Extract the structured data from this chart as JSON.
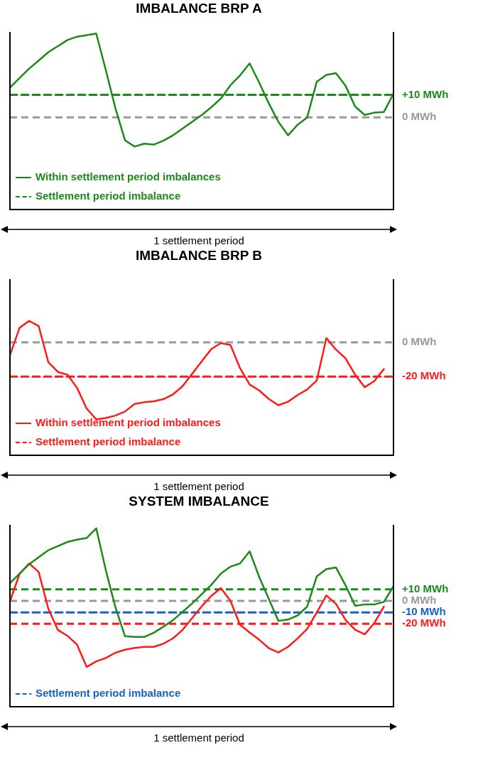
{
  "chart_data": [
    {
      "type": "line",
      "title": "IMBALANCE BRP A",
      "xlabel": "1 settlement period",
      "ylim": [
        -41,
        38
      ],
      "yticks": [
        {
          "value": 10,
          "label": "+10 MWh"
        },
        {
          "value": 0,
          "label": "0 MWh"
        }
      ],
      "tick_labels": "y",
      "legend": "bottom left",
      "marker": "none",
      "categories": [
        null,
        null,
        null,
        null,
        null,
        null,
        null,
        null,
        null,
        null,
        null,
        null,
        null,
        null,
        null,
        null,
        null,
        null,
        null,
        null,
        null,
        null,
        null,
        null,
        null,
        null,
        null,
        null,
        null,
        null,
        null,
        null,
        null,
        null,
        null,
        null,
        null,
        null,
        null,
        null,
        null
      ],
      "series": [
        {
          "name": "Within settlement period imbalances",
          "color": "#1a8a1a",
          "line_style": "solid",
          "values": [
            13.2,
            17.5,
            21.7,
            25.3,
            29,
            31.7,
            34.4,
            35.9,
            36.6,
            37.3,
            21,
            4.1,
            -10.2,
            -13,
            -11.7,
            -12.1,
            -10.4,
            -8,
            -5,
            -2,
            1,
            4.5,
            8.4,
            14.3,
            18.7,
            24,
            15.4,
            6.2,
            -2,
            -8,
            -3.3,
            0,
            15.9,
            18.9,
            19.7,
            14.1,
            4.8,
            1.1,
            2.1,
            2.4,
            10.5
          ]
        },
        {
          "name": "Settlement period imbalance",
          "color": "#1a8a1a",
          "line_style": "dashed",
          "values": [
            10,
            10,
            10,
            10,
            10,
            10,
            10,
            10,
            10,
            10,
            10,
            10,
            10,
            10,
            10,
            10,
            10,
            10,
            10,
            10,
            10,
            10,
            10,
            10,
            10,
            10,
            10,
            10,
            10,
            10,
            10,
            10,
            10,
            10,
            10,
            10,
            10,
            10,
            10,
            10,
            10
          ]
        }
      ],
      "ref_lines": [
        {
          "axis": "y",
          "value": 0,
          "color": "#999999",
          "line_style": "dashed"
        }
      ]
    },
    {
      "type": "line",
      "title": "IMBALANCE BRP B",
      "xlabel": "1 settlement period",
      "ylim": [
        -66,
        37
      ],
      "yticks": [
        {
          "value": 0,
          "label": "0 MWh"
        },
        {
          "value": -20,
          "label": "-20 MWh"
        }
      ],
      "tick_labels": "y",
      "legend": "bottom left",
      "marker": "none",
      "categories": [
        null,
        null,
        null,
        null,
        null,
        null,
        null,
        null,
        null,
        null,
        null,
        null,
        null,
        null,
        null,
        null,
        null,
        null,
        null,
        null,
        null,
        null,
        null,
        null,
        null,
        null,
        null,
        null,
        null,
        null,
        null,
        null,
        null,
        null,
        null,
        null,
        null,
        null,
        null,
        null,
        null
      ],
      "series": [
        {
          "name": "Within settlement period imbalances",
          "color": "#ff1a1a",
          "line_style": "solid",
          "values": [
            -7.5,
            8.5,
            12.6,
            9.5,
            -11.5,
            -17.3,
            -18.9,
            -26.6,
            -38.7,
            -45,
            -44.2,
            -42.8,
            -40.4,
            -36,
            -35,
            -34.4,
            -33.2,
            -30.4,
            -25.6,
            -18.4,
            -11.1,
            -3.9,
            -0.4,
            -1.5,
            -15.1,
            -24.6,
            -28.1,
            -33.1,
            -36.7,
            -34.7,
            -30.8,
            -27.5,
            -22.2,
            2.5,
            -4.2,
            -9.3,
            -18.9,
            -26.2,
            -22.6,
            -15.6,
            null
          ]
        },
        {
          "name": "Settlement period imbalance",
          "color": "#ff1a1a",
          "line_style": "dashed",
          "values": [
            -20,
            -20,
            -20,
            -20,
            -20,
            -20,
            -20,
            -20,
            -20,
            -20,
            -20,
            -20,
            -20,
            -20,
            -20,
            -20,
            -20,
            -20,
            -20,
            -20,
            -20,
            -20,
            -20,
            -20,
            -20,
            -20,
            -20,
            -20,
            -20,
            -20,
            -20,
            -20,
            -20,
            -20,
            -20,
            -20,
            -20,
            -20,
            -20,
            -20,
            -20
          ]
        }
      ],
      "ref_lines": [
        {
          "axis": "y",
          "value": 0,
          "color": "#999999",
          "line_style": "dashed"
        }
      ]
    },
    {
      "type": "line",
      "title": "SYSTEM IMBALANCE",
      "xlabel": "1 settlement period",
      "ylim": [
        -92,
        66
      ],
      "yticks": [
        {
          "value": 10,
          "label": "+10 MWh"
        },
        {
          "value": 0,
          "label": "0 MWh"
        },
        {
          "value": -10,
          "label": "-10 MWh"
        },
        {
          "value": -20,
          "label": "-20 MWh"
        }
      ],
      "tick_labels": "y",
      "legend": "bottom left",
      "marker": "none",
      "categories": [
        null,
        null,
        null,
        null,
        null,
        null,
        null,
        null,
        null,
        null,
        null,
        null,
        null,
        null,
        null,
        null,
        null,
        null,
        null,
        null,
        null,
        null,
        null,
        null,
        null,
        null,
        null,
        null,
        null,
        null,
        null,
        null,
        null,
        null,
        null,
        null,
        null,
        null,
        null,
        null,
        null
      ],
      "series": [
        {
          "color": "#1a8a1a",
          "line_style": "solid",
          "values": [
            15.3,
            23.7,
            31.8,
            37.9,
            44,
            47.6,
            51.2,
            53.2,
            54.6,
            63,
            26.6,
            -5.6,
            -30.8,
            -31.4,
            -31.4,
            -27.7,
            -22.5,
            -16.8,
            -9.6,
            -2.3,
            5.7,
            13.9,
            23.7,
            29.7,
            32.5,
            43,
            20.6,
            1.7,
            -17.4,
            -16.3,
            -12.7,
            -5,
            21.3,
            27.6,
            29,
            13.5,
            -4.3,
            -3.2,
            -3.2,
            -0.9,
            12.6
          ]
        },
        {
          "color": "#ff1a1a",
          "line_style": "solid",
          "values": [
            -0.5,
            23.4,
            32.5,
            25,
            -6.8,
            -25.3,
            -30.4,
            -38.1,
            -57.5,
            -52.6,
            -49.7,
            -45.1,
            -42.5,
            -40.9,
            -40,
            -40,
            -37.3,
            -32.6,
            -25.4,
            -15,
            -4.8,
            4.3,
            11.1,
            0,
            -20.9,
            -27.5,
            -33.9,
            -41.1,
            -44.9,
            -40,
            -32.7,
            -24.4,
            -10.2,
            4.7,
            -2.6,
            -16.6,
            -25.1,
            -29.1,
            -19.3,
            -5,
            null
          ]
        },
        {
          "name": "Settlement period imbalance",
          "color": "#1a5fc8",
          "line_style": "dashed",
          "values": [
            -10,
            -10,
            -10,
            -10,
            -10,
            -10,
            -10,
            -10,
            -10,
            -10,
            -10,
            -10,
            -10,
            -10,
            -10,
            -10,
            -10,
            -10,
            -10,
            -10,
            -10,
            -10,
            -10,
            -10,
            -10,
            -10,
            -10,
            -10,
            -10,
            -10,
            -10,
            -10,
            -10,
            -10,
            -10,
            -10,
            -10,
            -10,
            -10,
            -10,
            -10
          ]
        }
      ],
      "ref_lines": [
        {
          "axis": "y",
          "value": 10,
          "color": "#1a8a1a",
          "line_style": "dashed"
        },
        {
          "axis": "y",
          "value": 0,
          "color": "#999999",
          "line_style": "dashed"
        },
        {
          "axis": "y",
          "value": -20,
          "color": "#ff1a1a",
          "line_style": "dashed"
        }
      ]
    }
  ]
}
